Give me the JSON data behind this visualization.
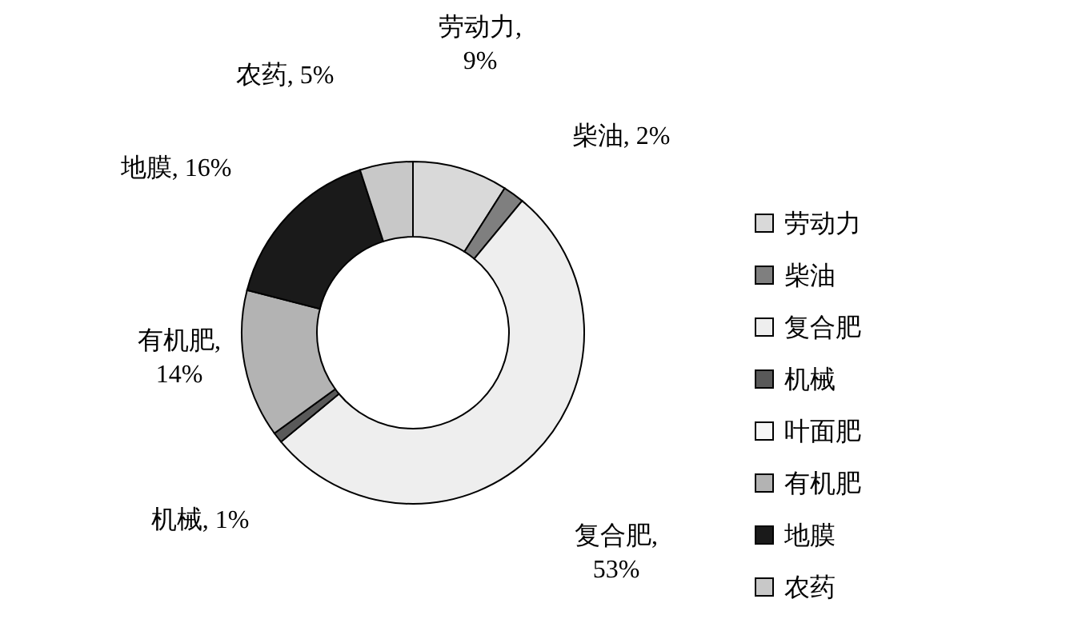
{
  "chart_data": {
    "type": "donut",
    "categories": [
      "劳动力",
      "柴油",
      "复合肥",
      "机械",
      "叶面肥",
      "有机肥",
      "地膜",
      "农药"
    ],
    "values": [
      9,
      2,
      53,
      1,
      null,
      14,
      16,
      5
    ],
    "colors": [
      "#d9d9d9",
      "#7f7f7f",
      "#eeeeee",
      "#595959",
      "#f7f7f7",
      "#b3b3b3",
      "#1a1a1a",
      "#c8c8c8"
    ],
    "value_labels": [
      "劳动力, 9%",
      "柴油, 2%",
      "复合肥, 53%",
      "机械, 1%",
      null,
      "有机肥, 14%",
      "地膜, 16%",
      "农药, 5%"
    ],
    "legend": "right"
  }
}
